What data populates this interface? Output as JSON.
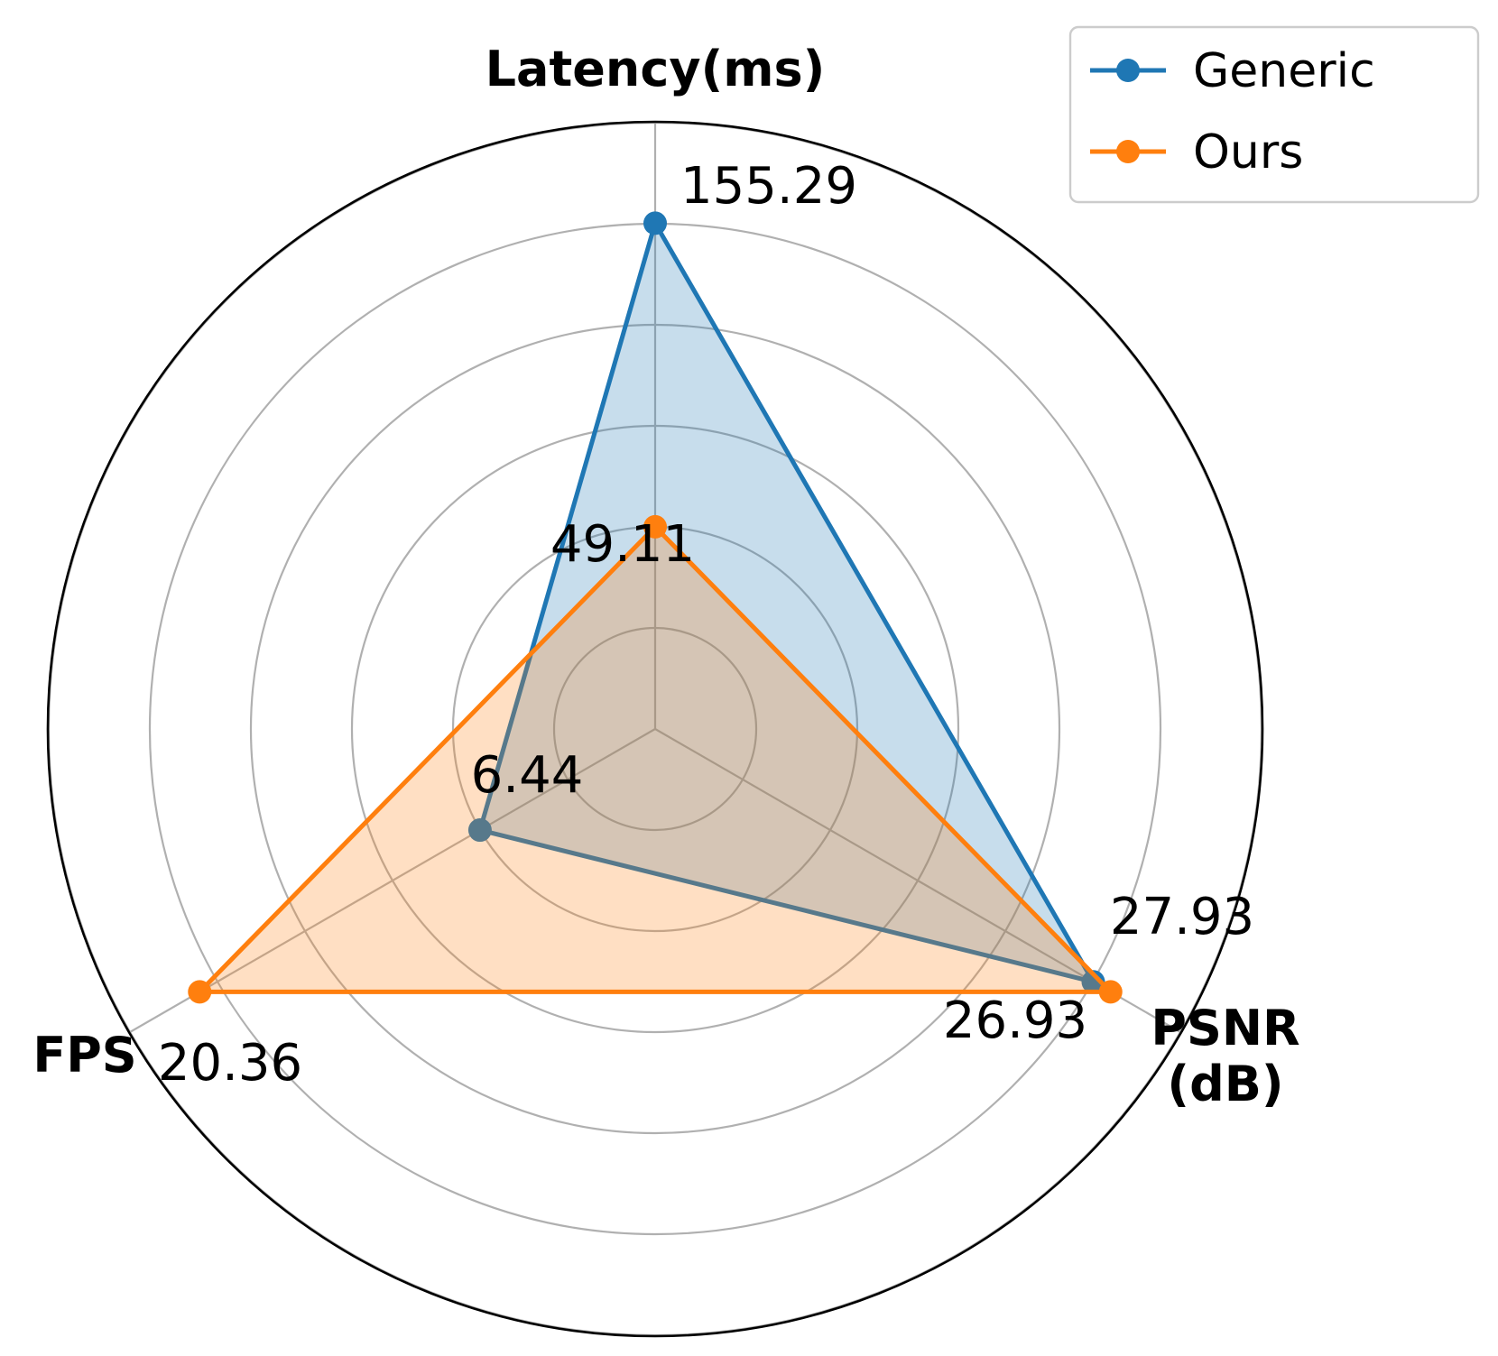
{
  "chart_data": {
    "type": "radar",
    "axes": [
      {
        "label_lines": [
          "Latency(ms)"
        ],
        "angle_deg": 90
      },
      {
        "label_lines": [
          "PSNR",
          "(dB)"
        ],
        "angle_deg": -30
      },
      {
        "label_lines": [
          "FPS"
        ],
        "angle_deg": 210
      }
    ],
    "rings": 6,
    "grid": true,
    "legend_position": "top-right",
    "series": [
      {
        "name": "Generic",
        "color": "#1f77b4",
        "values": [
          155.29,
          26.93,
          6.44
        ],
        "value_labels": [
          "155.29",
          "26.93",
          "6.44"
        ],
        "normalized_radius": [
          0.833,
          0.833,
          0.333
        ]
      },
      {
        "name": "Ours",
        "color": "#ff7f0e",
        "values": [
          49.11,
          27.93,
          20.36
        ],
        "value_labels": [
          "49.11",
          "27.93",
          "20.36"
        ],
        "normalized_radius": [
          0.333,
          0.866,
          0.866
        ]
      }
    ]
  }
}
